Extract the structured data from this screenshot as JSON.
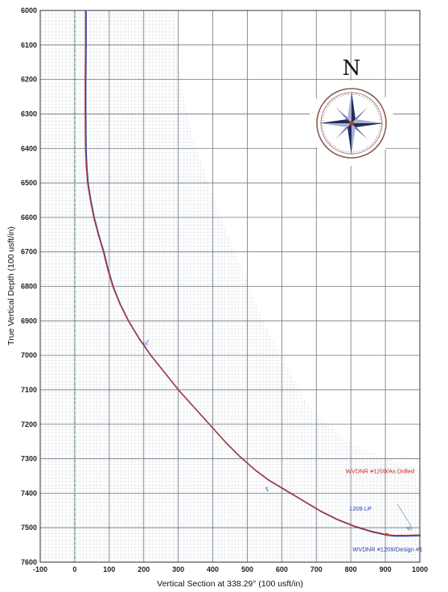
{
  "chart_data": {
    "type": "line",
    "title": "",
    "xlabel": "Vertical Section at 338.29° (100 usft/in)",
    "ylabel": "True Vertical Depth (100 usft/in)",
    "xlim": [
      -100,
      1000
    ],
    "ylim": [
      6000,
      7600
    ],
    "y_inverted": true,
    "grid": true,
    "x_ticks": [
      -100,
      0,
      100,
      200,
      300,
      400,
      500,
      600,
      700,
      800,
      900,
      1000
    ],
    "y_ticks": [
      6000,
      6100,
      6200,
      6300,
      6400,
      6500,
      6600,
      6700,
      6800,
      6900,
      7000,
      7100,
      7200,
      7300,
      7400,
      7500,
      7600
    ],
    "series": [
      {
        "name": "WVDNR #1209/As Drilled",
        "color": "#c0392b",
        "x": [
          31,
          31,
          30,
          30,
          31,
          33,
          37,
          45,
          55,
          68,
          83,
          95,
          110,
          130,
          155,
          185,
          220,
          260,
          300,
          345,
          390,
          435,
          475,
          520,
          560,
          610,
          660,
          710,
          760,
          810,
          860,
          905,
          925,
          960,
          1000
        ],
        "y": [
          6000,
          6100,
          6200,
          6300,
          6400,
          6450,
          6500,
          6550,
          6600,
          6650,
          6700,
          6750,
          6800,
          6850,
          6900,
          6950,
          7000,
          7050,
          7100,
          7150,
          7200,
          7250,
          7290,
          7330,
          7360,
          7390,
          7420,
          7450,
          7475,
          7495,
          7510,
          7520,
          7522,
          7522,
          7521
        ]
      },
      {
        "name": "WVDNR #1209/Design #1",
        "color": "#2040b0",
        "x": [
          31,
          31,
          30,
          30,
          31,
          33,
          37,
          45,
          55,
          68,
          83,
          95,
          110,
          130,
          155,
          185,
          220,
          260,
          300,
          345,
          390,
          435,
          475,
          520,
          560,
          610,
          660,
          710,
          760,
          810,
          860,
          905,
          925,
          960,
          1000
        ],
        "y": [
          6000,
          6100,
          6200,
          6300,
          6400,
          6450,
          6500,
          6550,
          6600,
          6650,
          6700,
          6750,
          6800,
          6850,
          6900,
          6950,
          7000,
          7050,
          7100,
          7150,
          7200,
          7250,
          7290,
          7330,
          7360,
          7390,
          7420,
          7450,
          7475,
          7495,
          7510,
          7520,
          7522,
          7522,
          7521
        ]
      }
    ],
    "annotations": [
      {
        "text": "WVDNR #1209/As Drilled",
        "x": 785,
        "y": 7342,
        "color": "#d02020"
      },
      {
        "text": "1209 LP",
        "x": 795,
        "y": 7450,
        "color": "#2040b0"
      },
      {
        "text": "WVDNR #1209/Design #1",
        "x": 805,
        "y": 7568,
        "color": "#2040b0"
      }
    ],
    "markers": [
      {
        "text": "½°",
        "x": 200,
        "y": 6975
      },
      {
        "text": "‡",
        "x": 555,
        "y": 7395
      },
      {
        "text": "½",
        "x": 965,
        "y": 7510
      }
    ],
    "vertical_reference_x": 0,
    "compass": {
      "label": "N",
      "icon": "compass-rose-icon"
    }
  }
}
